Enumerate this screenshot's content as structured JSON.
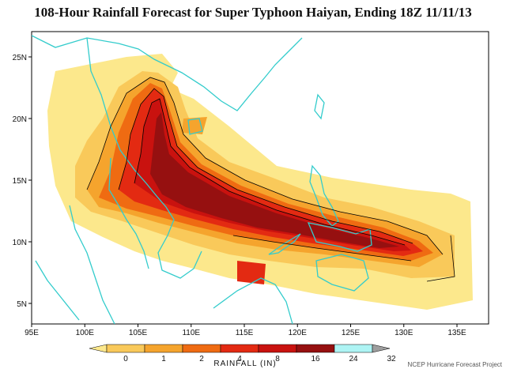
{
  "title": "108-Hour Rainfall Forecast for Super Typhoon Haiyan, Ending 18Z 11/11/13",
  "map": {
    "lon_ticks": [
      "95E",
      "100E",
      "105E",
      "110E",
      "115E",
      "120E",
      "125E",
      "130E",
      "135E"
    ],
    "lat_ticks": [
      "25N",
      "20N",
      "15N",
      "10N",
      "5N"
    ],
    "coast_color": "#33cccc"
  },
  "colorbar": {
    "title": "RAINFALL (IN)",
    "levels": [
      "0",
      "1",
      "2",
      "4",
      "8",
      "16",
      "24",
      "32"
    ],
    "colors": [
      "#fce88c",
      "#f9c95a",
      "#f5a42d",
      "#ef6b12",
      "#e32a12",
      "#c9120f",
      "#961010",
      "#aef4f4",
      "#9e9e9e"
    ]
  },
  "credit": "NCEP Hurricane Forecast Project"
}
